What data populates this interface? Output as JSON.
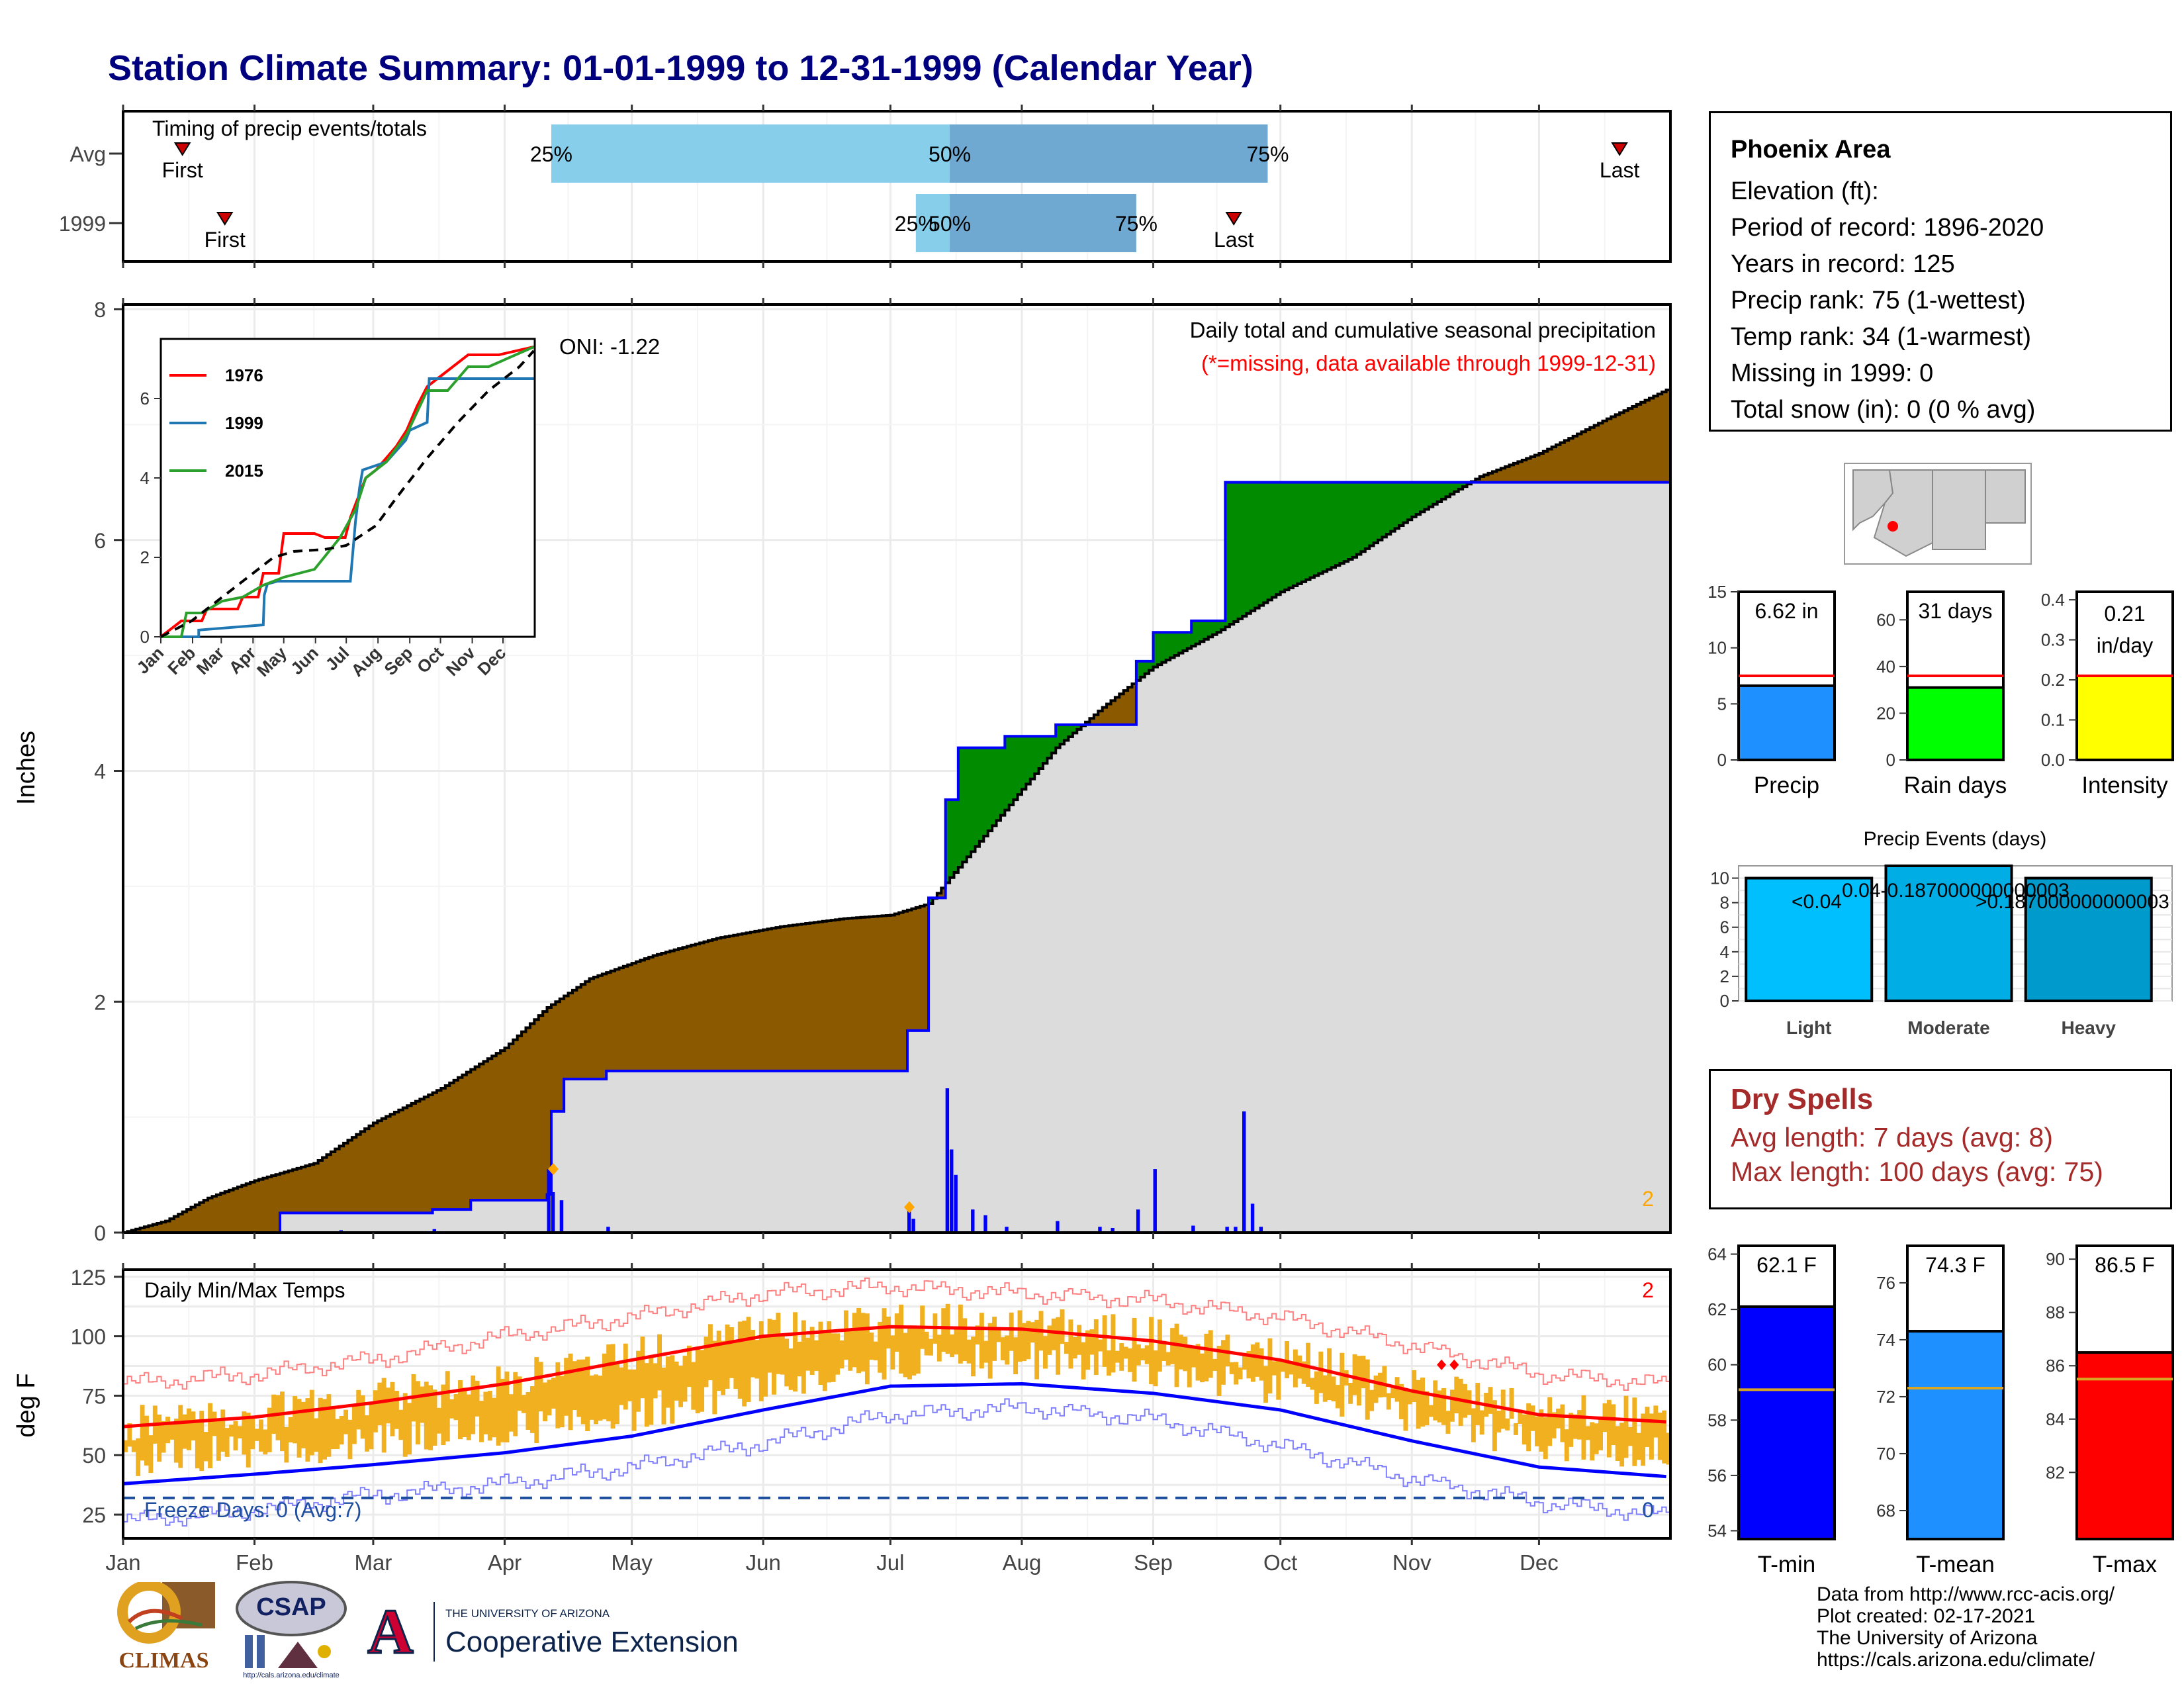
{
  "title": "Station Climate Summary: 01-01-1999 to 12-31-1999 (Calendar Year)",
  "station": {
    "name": "Phoenix Area",
    "lines": [
      "Elevation (ft):",
      "Period of record: 1896-2020",
      "Years in record: 125",
      "Precip rank: 75 (1-wettest)",
      "Temp rank: 34 (1-warmest)",
      "Missing in 1999: 0",
      "Total snow (in): 0 (0 % avg)"
    ]
  },
  "dry_spells": {
    "title": "Dry Spells",
    "avg": "Avg length: 7 days (avg: 8)",
    "max": "Max length: 100 days (avg: 75)"
  },
  "credits": [
    "Data from http://www.rcc-acis.org/",
    "Plot created: 02-17-2021",
    "The University of Arizona",
    "https://cals.arizona.edu/climate/"
  ],
  "logos": {
    "climas": "CLIMAS",
    "csap": "CSAP",
    "csap_url": "http://cals.arizona.edu/climate",
    "ua_top": "THE UNIVERSITY OF ARIZONA",
    "ua_bottom": "Cooperative Extension",
    "ua_letter": "A"
  },
  "colors": {
    "title": "#00007f",
    "brown": "#8b5a00",
    "green": "#008b00",
    "gray": "#dcdcdc",
    "blue": "#0000ff",
    "orange": "#f0b020",
    "red": "#ff0000",
    "lightblue": "#87ceeb",
    "midblue": "#6fa8d0"
  },
  "chart_data": [
    {
      "type": "bar",
      "id": "timing",
      "title": "Timing of precip events/totals",
      "categories": [
        "Avg",
        "1999"
      ],
      "rows": [
        {
          "label": "Avg",
          "first": "01-15",
          "p25": "04-12",
          "p50": "07-15",
          "p75": "09-28",
          "last": "12-20",
          "first_label": "First",
          "last_label": "Last",
          "p25_label": "25%",
          "p50_label": "50%",
          "p75_label": "75%"
        },
        {
          "label": "1999",
          "first": "01-25",
          "p25": "07-07",
          "p50": "07-15",
          "p75": "08-28",
          "last": "09-20",
          "first_label": "First",
          "last_label": "Last",
          "p25_label": "25%",
          "p50_label": "50%",
          "p75_label": "75%"
        }
      ]
    },
    {
      "type": "area",
      "id": "precip-main",
      "title": "Daily total and cumulative seasonal precipitation",
      "subtitle": "(*=missing, data available through 1999-12-31)",
      "oni": "ONI: -1.22",
      "ylabel": "Inches",
      "ylim": [
        0,
        8
      ],
      "yticks": [
        0,
        2,
        4,
        6,
        8
      ],
      "missing_count": "2",
      "avg_cumulative": [
        [
          0,
          0
        ],
        [
          10,
          0.1
        ],
        [
          20,
          0.3
        ],
        [
          31,
          0.45
        ],
        [
          45,
          0.6
        ],
        [
          59,
          0.95
        ],
        [
          75,
          1.25
        ],
        [
          90,
          1.6
        ],
        [
          100,
          1.95
        ],
        [
          110,
          2.2
        ],
        [
          125,
          2.4
        ],
        [
          140,
          2.55
        ],
        [
          155,
          2.65
        ],
        [
          170,
          2.72
        ],
        [
          181,
          2.75
        ],
        [
          190,
          2.85
        ],
        [
          200,
          3.3
        ],
        [
          210,
          3.75
        ],
        [
          220,
          4.2
        ],
        [
          231,
          4.55
        ],
        [
          243,
          4.9
        ],
        [
          258,
          5.2
        ],
        [
          273,
          5.55
        ],
        [
          290,
          5.85
        ],
        [
          304,
          6.2
        ],
        [
          320,
          6.55
        ],
        [
          334,
          6.75
        ],
        [
          350,
          7.05
        ],
        [
          364,
          7.3
        ]
      ],
      "year_cumulative": [
        [
          0,
          0
        ],
        [
          37,
          0
        ],
        [
          37,
          0.17
        ],
        [
          73,
          0.17
        ],
        [
          73,
          0.2
        ],
        [
          82,
          0.2
        ],
        [
          82,
          0.28
        ],
        [
          100,
          0.28
        ],
        [
          100,
          0.33
        ],
        [
          101,
          0.33
        ],
        [
          101,
          1.05
        ],
        [
          104,
          1.05
        ],
        [
          104,
          1.33
        ],
        [
          114,
          1.33
        ],
        [
          114,
          1.4
        ],
        [
          185,
          1.4
        ],
        [
          185,
          1.75
        ],
        [
          190,
          1.75
        ],
        [
          190,
          2.9
        ],
        [
          194,
          2.9
        ],
        [
          194,
          3.75
        ],
        [
          197,
          3.75
        ],
        [
          197,
          4.2
        ],
        [
          208,
          4.2
        ],
        [
          208,
          4.3
        ],
        [
          220,
          4.3
        ],
        [
          220,
          4.4
        ],
        [
          232,
          4.4
        ],
        [
          232,
          4.4
        ],
        [
          239,
          4.4
        ],
        [
          239,
          4.95
        ],
        [
          243,
          4.95
        ],
        [
          243,
          5.2
        ],
        [
          252,
          5.2
        ],
        [
          252,
          5.3
        ],
        [
          260,
          5.3
        ],
        [
          260,
          5.4
        ],
        [
          260,
          6.5
        ],
        [
          364,
          6.5
        ]
      ],
      "daily": [
        [
          51,
          0.02
        ],
        [
          73,
          0.03
        ],
        [
          100,
          0.55
        ],
        [
          101,
          0.35
        ],
        [
          103,
          0.28
        ],
        [
          114,
          0.05
        ],
        [
          185,
          0.2
        ],
        [
          186,
          0.12
        ],
        [
          194,
          1.25
        ],
        [
          195,
          0.72
        ],
        [
          196,
          0.5
        ],
        [
          200,
          0.2
        ],
        [
          203,
          0.15
        ],
        [
          208,
          0.05
        ],
        [
          220,
          0.1
        ],
        [
          230,
          0.05
        ],
        [
          233,
          0.04
        ],
        [
          239,
          0.2
        ],
        [
          243,
          0.55
        ],
        [
          252,
          0.06
        ],
        [
          260,
          0.05
        ],
        [
          262,
          0.05
        ],
        [
          264,
          1.05
        ],
        [
          266,
          0.25
        ],
        [
          268,
          0.05
        ]
      ],
      "markers": [
        [
          101,
          0.55
        ],
        [
          185,
          0.22
        ]
      ],
      "months": [
        "Jan",
        "Feb",
        "Mar",
        "Apr",
        "May",
        "Jun",
        "Jul",
        "Aug",
        "Sep",
        "Oct",
        "Nov",
        "Dec"
      ]
    },
    {
      "type": "line",
      "id": "inset",
      "series": [
        {
          "name": "1976",
          "color": "#ff0000",
          "values": [
            [
              0,
              0
            ],
            [
              20,
              0.4
            ],
            [
              40,
              0.4
            ],
            [
              45,
              0.7
            ],
            [
              75,
              0.7
            ],
            [
              80,
              1.0
            ],
            [
              95,
              1.0
            ],
            [
              100,
              1.6
            ],
            [
              115,
              1.6
            ],
            [
              120,
              2.6
            ],
            [
              150,
              2.6
            ],
            [
              160,
              2.5
            ],
            [
              180,
              2.5
            ],
            [
              185,
              3.0
            ],
            [
              200,
              4.0
            ],
            [
              210,
              4.2
            ],
            [
              230,
              4.8
            ],
            [
              240,
              5.2
            ],
            [
              250,
              5.8
            ],
            [
              260,
              6.3
            ],
            [
              270,
              6.5
            ],
            [
              300,
              7.1
            ],
            [
              330,
              7.1
            ],
            [
              364,
              7.3
            ]
          ]
        },
        {
          "name": "1999",
          "color": "#1f77b4",
          "values": [
            [
              0,
              0
            ],
            [
              37,
              0
            ],
            [
              37,
              0.17
            ],
            [
              100,
              0.3
            ],
            [
              101,
              1.05
            ],
            [
              104,
              1.33
            ],
            [
              114,
              1.4
            ],
            [
              185,
              1.4
            ],
            [
              190,
              2.9
            ],
            [
              194,
              3.75
            ],
            [
              197,
              4.2
            ],
            [
              220,
              4.4
            ],
            [
              239,
              4.95
            ],
            [
              243,
              5.2
            ],
            [
              260,
              5.4
            ],
            [
              262,
              6.5
            ],
            [
              364,
              6.5
            ]
          ]
        },
        {
          "name": "2015",
          "color": "#2ca02c",
          "values": [
            [
              0,
              0
            ],
            [
              20,
              0.0
            ],
            [
              25,
              0.6
            ],
            [
              40,
              0.6
            ],
            [
              60,
              0.9
            ],
            [
              80,
              1.0
            ],
            [
              100,
              1.3
            ],
            [
              120,
              1.5
            ],
            [
              150,
              1.7
            ],
            [
              175,
              2.5
            ],
            [
              190,
              3.2
            ],
            [
              200,
              4.0
            ],
            [
              220,
              4.4
            ],
            [
              240,
              5.1
            ],
            [
              260,
              6.2
            ],
            [
              280,
              6.2
            ],
            [
              300,
              6.8
            ],
            [
              320,
              6.8
            ],
            [
              364,
              7.3
            ]
          ]
        }
      ],
      "avg": [
        [
          0,
          0
        ],
        [
          30,
          0.4
        ],
        [
          60,
          1.0
        ],
        [
          90,
          1.6
        ],
        [
          110,
          2.0
        ],
        [
          130,
          2.15
        ],
        [
          160,
          2.2
        ],
        [
          181,
          2.3
        ],
        [
          210,
          2.8
        ],
        [
          230,
          3.5
        ],
        [
          260,
          4.5
        ],
        [
          290,
          5.4
        ],
        [
          320,
          6.2
        ],
        [
          350,
          6.8
        ],
        [
          364,
          7.2
        ]
      ],
      "ylim": [
        0,
        7.5
      ],
      "yticks": [
        0,
        2,
        4,
        6
      ],
      "months": [
        "Jan",
        "Feb",
        "Mar",
        "Apr",
        "May",
        "Jun",
        "Jul",
        "Aug",
        "Sep",
        "Oct",
        "Nov",
        "Dec"
      ]
    },
    {
      "type": "bar",
      "id": "precip-summary",
      "panels": [
        {
          "name": "Precip",
          "value_label": "6.62 in",
          "value": 6.62,
          "avg": 7.5,
          "ylim": [
            0,
            15
          ],
          "yticks": [
            0,
            5,
            10,
            15
          ],
          "color": "#1e90ff"
        },
        {
          "name": "Rain days",
          "value_label": "31 days",
          "value": 31,
          "avg": 36,
          "ylim": [
            0,
            72
          ],
          "yticks": [
            0,
            20,
            40,
            60
          ],
          "color": "#00ff00"
        },
        {
          "name": "Intensity",
          "value_label": "0.21 in/day",
          "value": 0.21,
          "avg": 0.21,
          "ylim": [
            0,
            0.42
          ],
          "yticks": [
            0.0,
            0.1,
            0.2,
            0.3,
            0.4
          ],
          "color": "#ffff00"
        }
      ]
    },
    {
      "type": "bar",
      "id": "precip-events",
      "title": "Precip Events (days)",
      "categories": [
        "Light",
        "Moderate",
        "Heavy"
      ],
      "values": [
        10,
        11,
        10
      ],
      "bar_labels": [
        "<0.04",
        "0.04-0.187000000000003",
        ">0.187000000000003"
      ],
      "ylim": [
        0,
        11
      ],
      "yticks": [
        0,
        2,
        4,
        6,
        8,
        10
      ],
      "colors": [
        "#00bfff",
        "#00aee5",
        "#009acc"
      ]
    },
    {
      "type": "line",
      "id": "temps",
      "title": "Daily Min/Max Temps",
      "ylabel": "deg F",
      "ylim": [
        15,
        128
      ],
      "yticks": [
        25,
        50,
        75,
        100,
        125
      ],
      "freeze_line": 32,
      "freeze_label": "Freeze Days: 0 (Avg:7)",
      "freeze_count": "0",
      "missing_count": "2",
      "avg_max": [
        [
          0,
          62
        ],
        [
          31,
          66
        ],
        [
          59,
          72
        ],
        [
          90,
          80
        ],
        [
          120,
          90
        ],
        [
          151,
          100
        ],
        [
          181,
          104
        ],
        [
          212,
          103
        ],
        [
          243,
          98
        ],
        [
          273,
          90
        ],
        [
          304,
          77
        ],
        [
          334,
          67
        ],
        [
          364,
          64
        ]
      ],
      "avg_min": [
        [
          0,
          38
        ],
        [
          31,
          42
        ],
        [
          59,
          46
        ],
        [
          90,
          51
        ],
        [
          120,
          58
        ],
        [
          151,
          69
        ],
        [
          181,
          79
        ],
        [
          212,
          80
        ],
        [
          243,
          76
        ],
        [
          273,
          69
        ],
        [
          304,
          56
        ],
        [
          334,
          45
        ],
        [
          364,
          41
        ]
      ],
      "rec_max": [
        [
          0,
          80
        ],
        [
          31,
          84
        ],
        [
          59,
          90
        ],
        [
          90,
          100
        ],
        [
          120,
          108
        ],
        [
          151,
          118
        ],
        [
          181,
          121
        ],
        [
          212,
          118
        ],
        [
          243,
          115
        ],
        [
          273,
          108
        ],
        [
          304,
          96
        ],
        [
          334,
          84
        ],
        [
          364,
          80
        ]
      ],
      "rec_min": [
        [
          0,
          22
        ],
        [
          31,
          27
        ],
        [
          59,
          33
        ],
        [
          90,
          38
        ],
        [
          120,
          45
        ],
        [
          151,
          55
        ],
        [
          181,
          67
        ],
        [
          212,
          70
        ],
        [
          243,
          65
        ],
        [
          273,
          54
        ],
        [
          304,
          40
        ],
        [
          334,
          30
        ],
        [
          364,
          25
        ]
      ],
      "month_max": [
        65,
        68,
        70,
        90,
        92,
        106,
        107,
        106,
        101,
        93,
        86,
        72
      ],
      "month_min": [
        42,
        45,
        44,
        53,
        62,
        73,
        81,
        83,
        76,
        65,
        53,
        44
      ],
      "records": [
        [
          311,
          88
        ],
        [
          314,
          88
        ]
      ],
      "months": [
        "Jan",
        "Feb",
        "Mar",
        "Apr",
        "May",
        "Jun",
        "Jul",
        "Aug",
        "Sep",
        "Oct",
        "Nov",
        "Dec"
      ]
    },
    {
      "type": "bar",
      "id": "temp-summary",
      "panels": [
        {
          "name": "T-min",
          "value_label": "62.1 F",
          "value": 62.1,
          "avg": 59.1,
          "ylim": [
            53.7,
            64.3
          ],
          "yticks": [
            54,
            56,
            58,
            60,
            62,
            64
          ],
          "color": "#0000ff"
        },
        {
          "name": "T-mean",
          "value_label": "74.3 F",
          "value": 74.3,
          "avg": 72.3,
          "ylim": [
            67.0,
            77.3
          ],
          "yticks": [
            68,
            70,
            72,
            74,
            76
          ],
          "color": "#1e90ff"
        },
        {
          "name": "T-max",
          "value_label": "86.5 F",
          "value": 86.5,
          "avg": 85.5,
          "ylim": [
            79.5,
            90.5
          ],
          "yticks": [
            82,
            84,
            86,
            88,
            90
          ],
          "color": "#ff0000"
        }
      ]
    }
  ]
}
